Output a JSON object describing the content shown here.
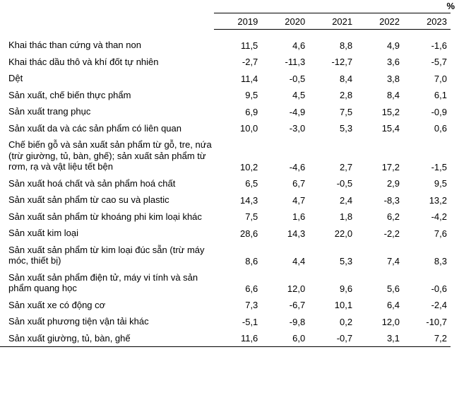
{
  "unit": "%",
  "years": [
    "2019",
    "2020",
    "2021",
    "2022",
    "2023"
  ],
  "rows": [
    {
      "label": "Khai thác than cứng và than non",
      "values": [
        "11,5",
        "4,6",
        "8,8",
        "4,9",
        "-1,6"
      ]
    },
    {
      "label": "Khai thác dầu thô và khí đốt tự nhiên",
      "values": [
        "-2,7",
        "-11,3",
        "-12,7",
        "3,6",
        "-5,7"
      ]
    },
    {
      "label": "Dệt",
      "values": [
        "11,4",
        "-0,5",
        "8,4",
        "3,8",
        "7,0"
      ]
    },
    {
      "label": "Sản xuất, chế biến thực phẩm",
      "values": [
        "9,5",
        "4,5",
        "2,8",
        "8,4",
        "6,1"
      ]
    },
    {
      "label": "Sản xuất trang phục",
      "values": [
        "6,9",
        "-4,9",
        "7,5",
        "15,2",
        "-0,9"
      ]
    },
    {
      "label": "Sản xuất da và các sản phẩm có liên quan",
      "values": [
        "10,0",
        "-3,0",
        "5,3",
        "15,4",
        "0,6"
      ]
    },
    {
      "label": "Chế biến gỗ và sản xuất sản phẩm từ gỗ, tre, nứa (trừ giường, tủ, bàn, ghế); sản xuất sản phẩm từ rơm, rạ và vật liệu tết bện",
      "values": [
        "10,2",
        "-4,6",
        "2,7",
        "17,2",
        "-1,5"
      ]
    },
    {
      "label": "Sản xuất hoá chất và sản phẩm hoá chất",
      "values": [
        "6,5",
        "6,7",
        "-0,5",
        "2,9",
        "9,5"
      ]
    },
    {
      "label": "Sản xuất sản phẩm từ cao su và plastic",
      "values": [
        "14,3",
        "4,7",
        "2,4",
        "-8,3",
        "13,2"
      ]
    },
    {
      "label": "Sản xuất sản phẩm từ khoáng phi kim loại khác",
      "values": [
        "7,5",
        "1,6",
        "1,8",
        "6,2",
        "-4,2"
      ]
    },
    {
      "label": "Sản xuất kim loại",
      "values": [
        "28,6",
        "14,3",
        "22,0",
        "-2,2",
        "7,6"
      ]
    },
    {
      "label": "Sản xuất sản phẩm từ kim loại đúc sẵn (trừ máy móc, thiết bị)",
      "values": [
        "8,6",
        "4,4",
        "5,3",
        "7,4",
        "8,3"
      ]
    },
    {
      "label": "Sản xuất sản phẩm điện tử, máy vi tính và sản phẩm quang học",
      "values": [
        "6,6",
        "12,0",
        "9,6",
        "5,6",
        "-0,6"
      ]
    },
    {
      "label": "Sản xuất xe có động cơ",
      "values": [
        "7,3",
        "-6,7",
        "10,1",
        "6,4",
        "-2,4"
      ]
    },
    {
      "label": "Sản xuất phương tiện vận tải khác",
      "values": [
        "-5,1",
        "-9,8",
        "0,2",
        "12,0",
        "-10,7"
      ]
    },
    {
      "label": "Sản xuất giường, tủ, bàn, ghế",
      "values": [
        "11,6",
        "6,0",
        "-0,7",
        "3,1",
        "7,2"
      ]
    }
  ]
}
